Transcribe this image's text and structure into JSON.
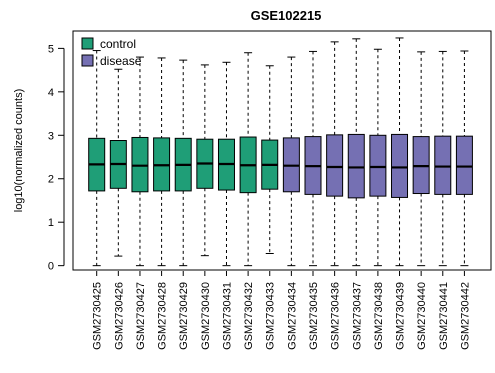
{
  "chart_data": {
    "type": "boxplot",
    "title": "GSE102215",
    "xlabel": "",
    "ylabel": "log10(normalized counts)",
    "ylim": [
      -0.1,
      5.4
    ],
    "yticks": [
      0,
      1,
      2,
      3,
      4,
      5
    ],
    "grid": false,
    "legend_position": "top-left",
    "groups": [
      {
        "name": "control",
        "color": "#1f9e77"
      },
      {
        "name": "disease",
        "color": "#7570b3"
      }
    ],
    "samples": [
      {
        "label": "GSM2730425",
        "group": "control",
        "min": 0.0,
        "q1": 1.72,
        "median": 2.33,
        "q3": 2.93,
        "max": 4.95
      },
      {
        "label": "GSM2730426",
        "group": "control",
        "min": 0.22,
        "q1": 1.78,
        "median": 2.34,
        "q3": 2.88,
        "max": 4.52
      },
      {
        "label": "GSM2730427",
        "group": "control",
        "min": 0.0,
        "q1": 1.7,
        "median": 2.3,
        "q3": 2.95,
        "max": 4.8
      },
      {
        "label": "GSM2730428",
        "group": "control",
        "min": 0.0,
        "q1": 1.72,
        "median": 2.31,
        "q3": 2.94,
        "max": 4.78
      },
      {
        "label": "GSM2730429",
        "group": "control",
        "min": 0.0,
        "q1": 1.72,
        "median": 2.32,
        "q3": 2.93,
        "max": 4.73
      },
      {
        "label": "GSM2730430",
        "group": "control",
        "min": 0.23,
        "q1": 1.78,
        "median": 2.35,
        "q3": 2.91,
        "max": 4.62
      },
      {
        "label": "GSM2730431",
        "group": "control",
        "min": 0.0,
        "q1": 1.74,
        "median": 2.34,
        "q3": 2.91,
        "max": 4.68
      },
      {
        "label": "GSM2730432",
        "group": "control",
        "min": 0.0,
        "q1": 1.68,
        "median": 2.31,
        "q3": 2.96,
        "max": 4.9
      },
      {
        "label": "GSM2730433",
        "group": "control",
        "min": 0.28,
        "q1": 1.76,
        "median": 2.32,
        "q3": 2.89,
        "max": 4.6
      },
      {
        "label": "GSM2730434",
        "group": "disease",
        "min": 0.0,
        "q1": 1.7,
        "median": 2.3,
        "q3": 2.94,
        "max": 4.8
      },
      {
        "label": "GSM2730435",
        "group": "disease",
        "min": 0.0,
        "q1": 1.64,
        "median": 2.29,
        "q3": 2.97,
        "max": 4.93
      },
      {
        "label": "GSM2730436",
        "group": "disease",
        "min": 0.0,
        "q1": 1.6,
        "median": 2.27,
        "q3": 3.01,
        "max": 5.15
      },
      {
        "label": "GSM2730437",
        "group": "disease",
        "min": 0.0,
        "q1": 1.56,
        "median": 2.26,
        "q3": 3.02,
        "max": 5.22
      },
      {
        "label": "GSM2730438",
        "group": "disease",
        "min": 0.0,
        "q1": 1.6,
        "median": 2.27,
        "q3": 3.0,
        "max": 4.98
      },
      {
        "label": "GSM2730439",
        "group": "disease",
        "min": 0.0,
        "q1": 1.57,
        "median": 2.26,
        "q3": 3.02,
        "max": 5.24
      },
      {
        "label": "GSM2730440",
        "group": "disease",
        "min": 0.0,
        "q1": 1.66,
        "median": 2.29,
        "q3": 2.97,
        "max": 4.92
      },
      {
        "label": "GSM2730441",
        "group": "disease",
        "min": 0.0,
        "q1": 1.64,
        "median": 2.28,
        "q3": 2.98,
        "max": 4.93
      },
      {
        "label": "GSM2730442",
        "group": "disease",
        "min": 0.0,
        "q1": 1.64,
        "median": 2.28,
        "q3": 2.98,
        "max": 4.94
      }
    ]
  }
}
